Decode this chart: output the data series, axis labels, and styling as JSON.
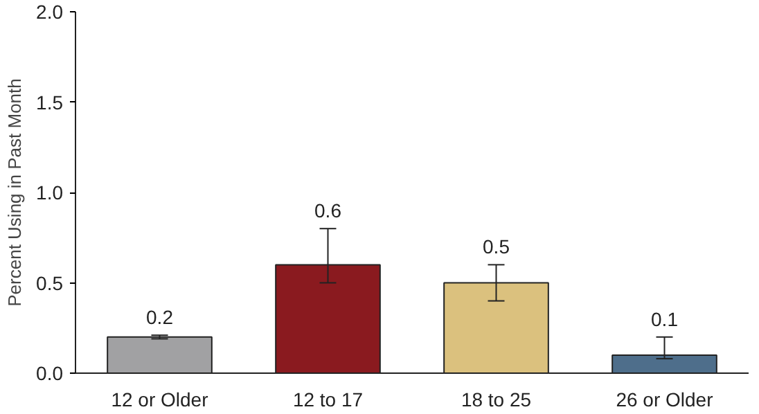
{
  "chart_data": {
    "type": "bar",
    "ylabel": "Percent Using in Past Month",
    "categories": [
      "12 or Older",
      "12 to 17",
      "18 to 25",
      "26 or Older"
    ],
    "values": [
      0.2,
      0.6,
      0.5,
      0.1
    ],
    "colors": [
      "#a1a1a3",
      "#8a1a1f",
      "#dbc17e",
      "#4e6e8b"
    ],
    "errors": [
      [
        0.19,
        0.21
      ],
      [
        0.5,
        0.8
      ],
      [
        0.4,
        0.6
      ],
      [
        0.08,
        0.2
      ]
    ],
    "data_labels": true,
    "grid": false,
    "ylim": [
      0,
      2
    ],
    "yticks": [
      {
        "value": 0,
        "label": "0.0"
      },
      {
        "value": 0.5,
        "label": "0.5"
      },
      {
        "value": 1,
        "label": "1.0"
      },
      {
        "value": 1.5,
        "label": "1.5"
      },
      {
        "value": 2,
        "label": "2.0"
      }
    ]
  }
}
